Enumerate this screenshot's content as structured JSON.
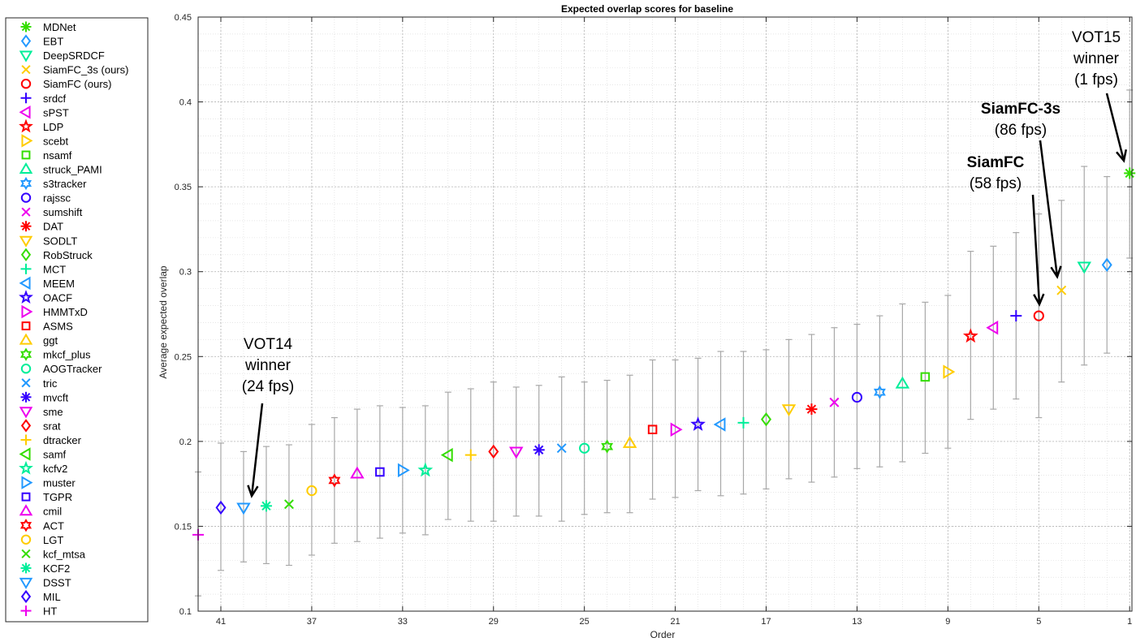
{
  "chart_data": {
    "type": "scatter",
    "title": "Expected overlap scores for baseline",
    "xlabel": "Order",
    "ylabel": "Average expected overlap",
    "xlim": [
      42,
      0.9
    ],
    "ylim": [
      0.1,
      0.45
    ],
    "x_reversed": true,
    "x_ticks": [
      41,
      37,
      33,
      29,
      25,
      21,
      17,
      13,
      9,
      5,
      1
    ],
    "y_ticks": [
      0.1,
      0.15,
      0.2,
      0.25,
      0.3,
      0.35,
      0.4,
      0.45
    ],
    "grid": true,
    "legend_position": "left",
    "series": [
      {
        "name": "MDNet",
        "order": 1,
        "value": 0.358,
        "lo": 0.308,
        "hi": 0.407,
        "marker": "asterisk",
        "color": "#33dd00"
      },
      {
        "name": "EBT",
        "order": 2,
        "value": 0.304,
        "lo": 0.252,
        "hi": 0.356,
        "marker": "diamond",
        "color": "#2299ff"
      },
      {
        "name": "DeepSRDCF",
        "order": 3,
        "value": 0.303,
        "lo": 0.245,
        "hi": 0.362,
        "marker": "triangle-down",
        "color": "#00ee99"
      },
      {
        "name": "SiamFC_3s (ours)",
        "order": 4,
        "value": 0.289,
        "lo": 0.235,
        "hi": 0.342,
        "marker": "x",
        "color": "#ffcc00"
      },
      {
        "name": "SiamFC (ours)",
        "order": 5,
        "value": 0.274,
        "lo": 0.214,
        "hi": 0.334,
        "marker": "circle",
        "color": "#ff0000"
      },
      {
        "name": "srdcf",
        "order": 6,
        "value": 0.274,
        "lo": 0.225,
        "hi": 0.323,
        "marker": "plus",
        "color": "#3300ff"
      },
      {
        "name": "sPST",
        "order": 7,
        "value": 0.267,
        "lo": 0.219,
        "hi": 0.315,
        "marker": "triangle-left",
        "color": "#ee00ee"
      },
      {
        "name": "LDP",
        "order": 8,
        "value": 0.262,
        "lo": 0.213,
        "hi": 0.312,
        "marker": "pentagram",
        "color": "#ff0000"
      },
      {
        "name": "scebt",
        "order": 9,
        "value": 0.241,
        "lo": 0.196,
        "hi": 0.286,
        "marker": "triangle-right",
        "color": "#ffcc00"
      },
      {
        "name": "nsamf",
        "order": 10,
        "value": 0.238,
        "lo": 0.193,
        "hi": 0.282,
        "marker": "square",
        "color": "#33dd00"
      },
      {
        "name": "struck_PAMI",
        "order": 11,
        "value": 0.234,
        "lo": 0.188,
        "hi": 0.281,
        "marker": "triangle-up",
        "color": "#00ee99"
      },
      {
        "name": "s3tracker",
        "order": 12,
        "value": 0.229,
        "lo": 0.185,
        "hi": 0.274,
        "marker": "hexagram",
        "color": "#2299ff"
      },
      {
        "name": "rajssc",
        "order": 13,
        "value": 0.226,
        "lo": 0.184,
        "hi": 0.269,
        "marker": "circle",
        "color": "#3300ff"
      },
      {
        "name": "sumshift",
        "order": 14,
        "value": 0.223,
        "lo": 0.179,
        "hi": 0.267,
        "marker": "x",
        "color": "#ee00ee"
      },
      {
        "name": "DAT",
        "order": 15,
        "value": 0.219,
        "lo": 0.176,
        "hi": 0.263,
        "marker": "asterisk",
        "color": "#ff0000"
      },
      {
        "name": "SODLT",
        "order": 16,
        "value": 0.219,
        "lo": 0.178,
        "hi": 0.26,
        "marker": "triangle-down",
        "color": "#ffcc00"
      },
      {
        "name": "RobStruck",
        "order": 17,
        "value": 0.213,
        "lo": 0.172,
        "hi": 0.254,
        "marker": "diamond",
        "color": "#33dd00"
      },
      {
        "name": "MCT",
        "order": 18,
        "value": 0.211,
        "lo": 0.169,
        "hi": 0.253,
        "marker": "plus",
        "color": "#00ee99"
      },
      {
        "name": "MEEM",
        "order": 19,
        "value": 0.21,
        "lo": 0.168,
        "hi": 0.253,
        "marker": "triangle-left",
        "color": "#2299ff"
      },
      {
        "name": "OACF",
        "order": 20,
        "value": 0.21,
        "lo": 0.171,
        "hi": 0.249,
        "marker": "pentagram",
        "color": "#3300ff"
      },
      {
        "name": "HMMTxD",
        "order": 21,
        "value": 0.207,
        "lo": 0.167,
        "hi": 0.248,
        "marker": "triangle-right",
        "color": "#ee00ee"
      },
      {
        "name": "ASMS",
        "order": 22,
        "value": 0.207,
        "lo": 0.166,
        "hi": 0.248,
        "marker": "square",
        "color": "#ff0000"
      },
      {
        "name": "ggt",
        "order": 23,
        "value": 0.199,
        "lo": 0.158,
        "hi": 0.239,
        "marker": "triangle-up",
        "color": "#ffcc00"
      },
      {
        "name": "mkcf_plus",
        "order": 24,
        "value": 0.197,
        "lo": 0.158,
        "hi": 0.236,
        "marker": "hexagram",
        "color": "#33dd00"
      },
      {
        "name": "AOGTracker",
        "order": 25,
        "value": 0.196,
        "lo": 0.157,
        "hi": 0.235,
        "marker": "circle",
        "color": "#00ee99"
      },
      {
        "name": "tric",
        "order": 26,
        "value": 0.196,
        "lo": 0.153,
        "hi": 0.238,
        "marker": "x",
        "color": "#2299ff"
      },
      {
        "name": "mvcft",
        "order": 27,
        "value": 0.195,
        "lo": 0.156,
        "hi": 0.233,
        "marker": "asterisk",
        "color": "#3300ff"
      },
      {
        "name": "sme",
        "order": 28,
        "value": 0.194,
        "lo": 0.156,
        "hi": 0.232,
        "marker": "triangle-down",
        "color": "#ee00ee"
      },
      {
        "name": "srat",
        "order": 29,
        "value": 0.194,
        "lo": 0.153,
        "hi": 0.235,
        "marker": "diamond",
        "color": "#ff0000"
      },
      {
        "name": "dtracker",
        "order": 30,
        "value": 0.192,
        "lo": 0.153,
        "hi": 0.231,
        "marker": "plus",
        "color": "#ffcc00"
      },
      {
        "name": "samf",
        "order": 31,
        "value": 0.192,
        "lo": 0.154,
        "hi": 0.229,
        "marker": "triangle-left",
        "color": "#33dd00"
      },
      {
        "name": "kcfv2",
        "order": 32,
        "value": 0.183,
        "lo": 0.145,
        "hi": 0.221,
        "marker": "pentagram",
        "color": "#00ee99"
      },
      {
        "name": "muster",
        "order": 33,
        "value": 0.183,
        "lo": 0.146,
        "hi": 0.22,
        "marker": "triangle-right",
        "color": "#2299ff"
      },
      {
        "name": "TGPR",
        "order": 34,
        "value": 0.182,
        "lo": 0.143,
        "hi": 0.221,
        "marker": "square",
        "color": "#3300ff"
      },
      {
        "name": "cmil",
        "order": 35,
        "value": 0.181,
        "lo": 0.141,
        "hi": 0.219,
        "marker": "triangle-up",
        "color": "#ee00ee"
      },
      {
        "name": "ACT",
        "order": 36,
        "value": 0.177,
        "lo": 0.14,
        "hi": 0.214,
        "marker": "hexagram",
        "color": "#ff0000"
      },
      {
        "name": "LGT",
        "order": 37,
        "value": 0.171,
        "lo": 0.133,
        "hi": 0.21,
        "marker": "circle",
        "color": "#ffcc00"
      },
      {
        "name": "kcf_mtsa",
        "order": 38,
        "value": 0.163,
        "lo": 0.127,
        "hi": 0.198,
        "marker": "x",
        "color": "#33dd00"
      },
      {
        "name": "KCF2",
        "order": 39,
        "value": 0.162,
        "lo": 0.128,
        "hi": 0.197,
        "marker": "asterisk",
        "color": "#00ee99"
      },
      {
        "name": "DSST",
        "order": 40,
        "value": 0.161,
        "lo": 0.129,
        "hi": 0.194,
        "marker": "triangle-down",
        "color": "#2299ff"
      },
      {
        "name": "MIL",
        "order": 41,
        "value": 0.161,
        "lo": 0.124,
        "hi": 0.199,
        "marker": "diamond",
        "color": "#3300ff"
      },
      {
        "name": "HT",
        "order": 42,
        "value": 0.145,
        "lo": 0.109,
        "hi": 0.182,
        "marker": "plus",
        "color": "#ee00ee"
      }
    ],
    "annotations": [
      {
        "lines": [
          "VOT15",
          "winner",
          "(1 fps)"
        ],
        "bold_first": false,
        "target": "MDNet"
      },
      {
        "lines": [
          "SiamFC-3s",
          "(86 fps)"
        ],
        "bold_first": true,
        "target": "SiamFC_3s (ours)"
      },
      {
        "lines": [
          "SiamFC",
          "(58 fps)"
        ],
        "bold_first": true,
        "target": "SiamFC (ours)"
      },
      {
        "lines": [
          "VOT14",
          "winner",
          "(24 fps)"
        ],
        "bold_first": false,
        "target": "DSST"
      }
    ]
  }
}
